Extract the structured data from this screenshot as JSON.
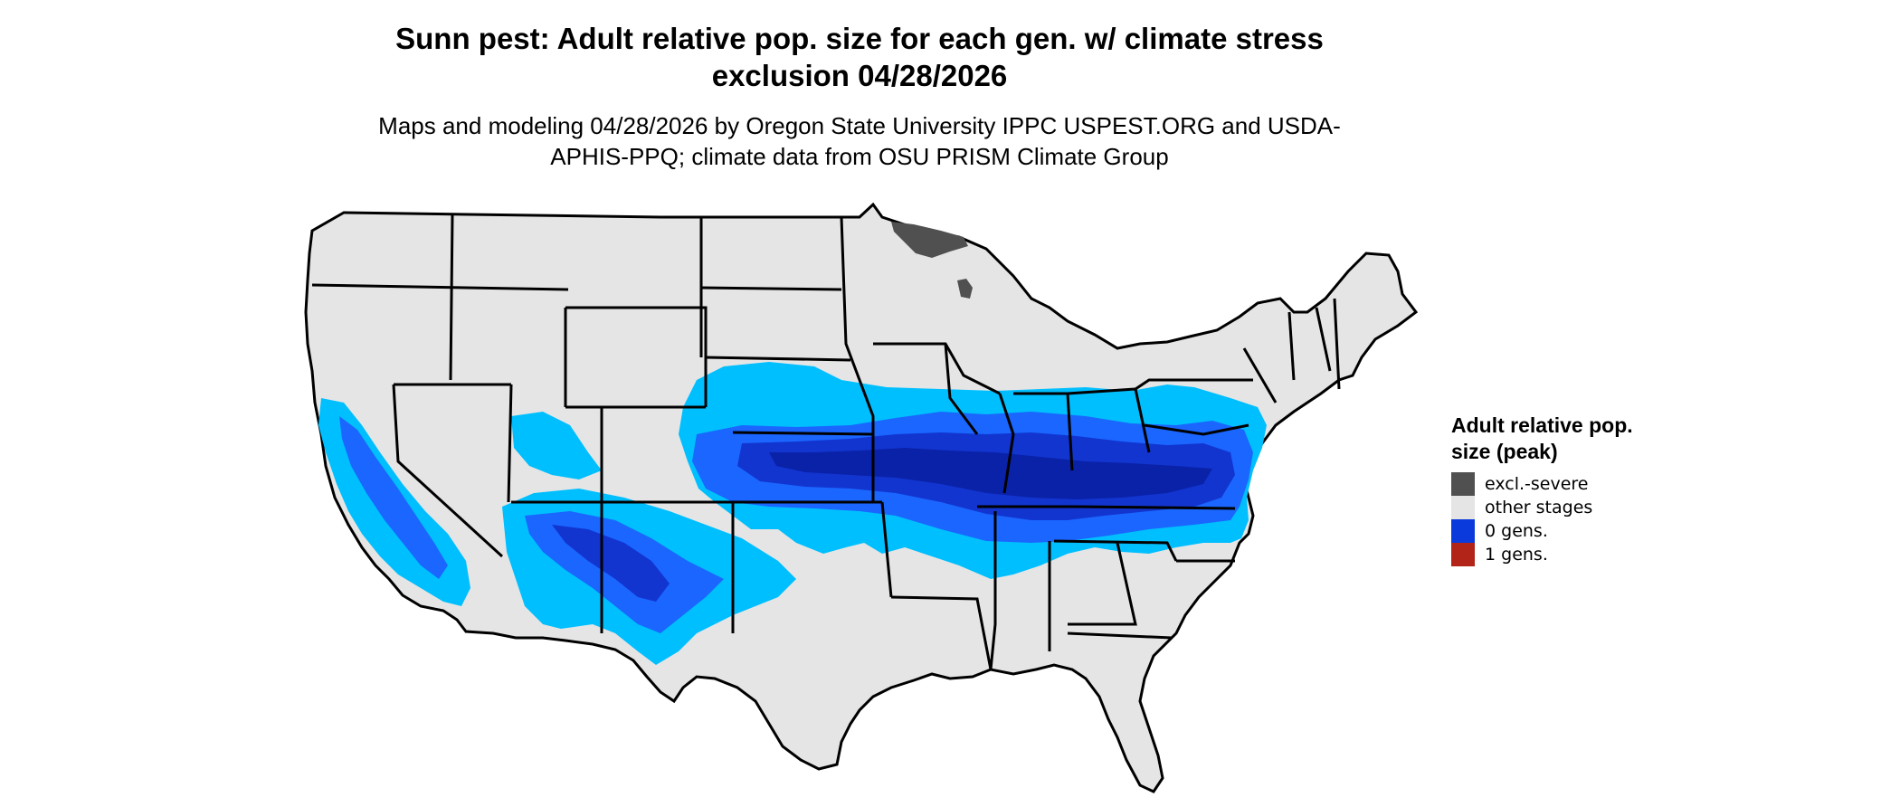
{
  "title": "Sunn pest: Adult relative pop. size for each gen. w/ climate stress exclusion 04/28/2026",
  "subtitle": "Maps and modeling 04/28/2026 by Oregon State University IPPC USPEST.ORG and USDA-APHIS-PPQ; climate data from OSU PRISM Climate Group",
  "legend": {
    "title": "Adult relative pop. size (peak)",
    "items": [
      {
        "label": "excl.-severe",
        "color": "#505050"
      },
      {
        "label": "other stages",
        "color": "#e5e5e5"
      },
      {
        "label": "0 gens.",
        "color": "#0a3adb"
      },
      {
        "label": "1 gens.",
        "color": "#b22418"
      }
    ]
  },
  "map_colors": {
    "land": "#e5e5e5",
    "outline": "#000000",
    "light_blue": "#00bfff",
    "mid_blue": "#1a66ff",
    "deep_blue": "#1235d0",
    "darkest_blue": "#0a22a8",
    "excl_severe": "#505050"
  }
}
